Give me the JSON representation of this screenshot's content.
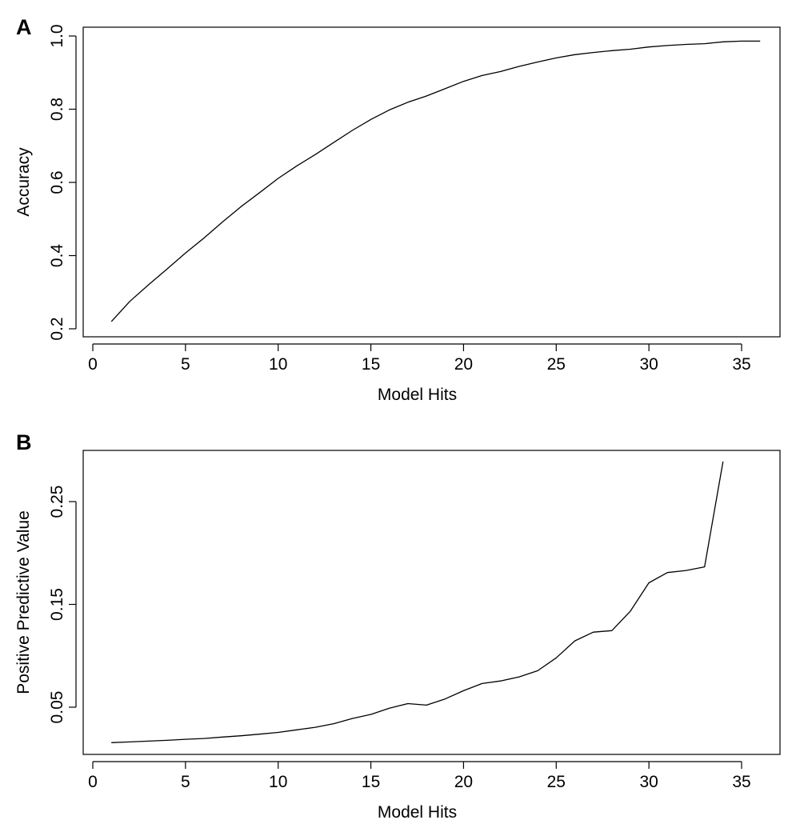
{
  "chart_data": [
    {
      "type": "line",
      "panel_label": "A",
      "title": "",
      "xlabel": "Model Hits",
      "ylabel": "Accuracy",
      "xlim": [
        1,
        36
      ],
      "ylim": [
        0.22,
        0.99
      ],
      "xticks": [
        0,
        5,
        10,
        15,
        20,
        25,
        30,
        35
      ],
      "xtick_labels": [
        "0",
        "5",
        "10",
        "15",
        "20",
        "25",
        "30",
        "35"
      ],
      "yticks": [
        0.2,
        0.4,
        0.6,
        0.8,
        1.0
      ],
      "ytick_labels": [
        "0.2",
        "0.4",
        "0.6",
        "0.8",
        "1.0"
      ],
      "grid": false,
      "legend": "none",
      "series": [
        {
          "x": [
            1,
            2,
            3,
            4,
            5,
            6,
            7,
            8,
            9,
            10,
            11,
            12,
            13,
            14,
            15,
            16,
            17,
            18,
            19,
            20,
            21,
            22,
            23,
            24,
            25,
            26,
            27,
            28,
            29,
            30,
            31,
            32,
            33,
            34,
            35,
            36
          ],
          "values": [
            0.22,
            0.275,
            0.32,
            0.363,
            0.407,
            0.448,
            0.492,
            0.534,
            0.572,
            0.611,
            0.645,
            0.676,
            0.709,
            0.742,
            0.772,
            0.798,
            0.819,
            0.836,
            0.856,
            0.876,
            0.892,
            0.903,
            0.917,
            0.929,
            0.94,
            0.949,
            0.955,
            0.96,
            0.964,
            0.97,
            0.974,
            0.977,
            0.979,
            0.984,
            0.986,
            0.986
          ]
        }
      ]
    },
    {
      "type": "line",
      "panel_label": "B",
      "title": "",
      "xlabel": "Model Hits",
      "ylabel": "Positive Predictive Value",
      "xlim": [
        1,
        34
      ],
      "ylim": [
        0.013,
        0.3
      ],
      "xticks": [
        0,
        5,
        10,
        15,
        20,
        25,
        30,
        35
      ],
      "xtick_labels": [
        "0",
        "5",
        "10",
        "15",
        "20",
        "25",
        "30",
        "35"
      ],
      "yticks": [
        0.05,
        0.15,
        0.25
      ],
      "ytick_labels": [
        "0.05",
        "0.15",
        "0.25"
      ],
      "grid": false,
      "legend": "none",
      "series": [
        {
          "x": [
            1,
            2,
            3,
            4,
            5,
            6,
            7,
            8,
            9,
            10,
            11,
            12,
            13,
            14,
            15,
            16,
            17,
            18,
            19,
            20,
            21,
            22,
            23,
            24,
            25,
            26,
            27,
            28,
            29,
            30,
            31,
            32,
            33,
            34
          ],
          "values": [
            0.0155,
            0.0162,
            0.017,
            0.0178,
            0.0188,
            0.0196,
            0.021,
            0.0222,
            0.0238,
            0.0255,
            0.028,
            0.0305,
            0.034,
            0.039,
            0.043,
            0.049,
            0.0535,
            0.052,
            0.058,
            0.066,
            0.073,
            0.0755,
            0.0795,
            0.0855,
            0.098,
            0.1145,
            0.123,
            0.1245,
            0.1435,
            0.171,
            0.181,
            0.183,
            0.1865,
            0.289
          ]
        }
      ]
    }
  ]
}
